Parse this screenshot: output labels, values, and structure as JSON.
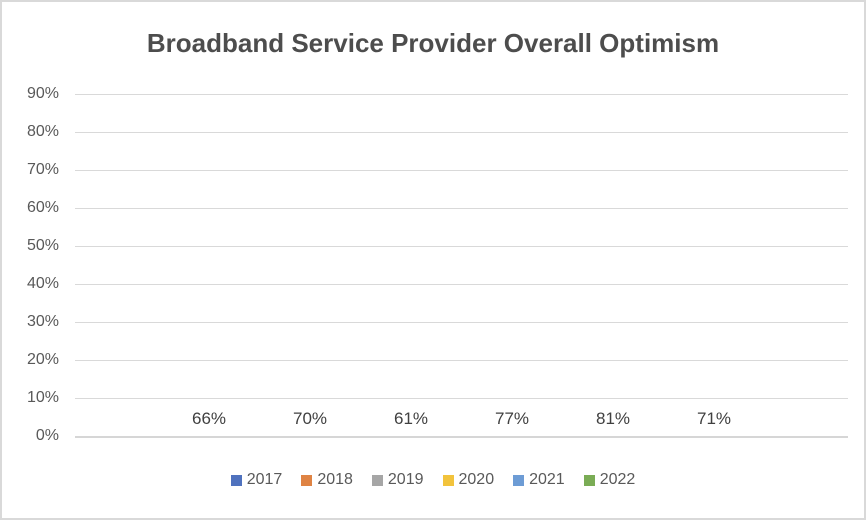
{
  "chart_data": {
    "type": "bar",
    "title": "Broadband Service Provider Overall Optimism",
    "categories": [
      "2017",
      "2018",
      "2019",
      "2020",
      "2021",
      "2022"
    ],
    "values": [
      66,
      70,
      61,
      77,
      81,
      71
    ],
    "series": [
      {
        "name": "2017",
        "value": 66,
        "label": "66%",
        "color": "#4F72BE"
      },
      {
        "name": "2018",
        "value": 70,
        "label": "70%",
        "color": "#DF8343"
      },
      {
        "name": "2019",
        "value": 61,
        "label": "61%",
        "color": "#A6A6A6"
      },
      {
        "name": "2020",
        "value": 77,
        "label": "77%",
        "color": "#F2C33C"
      },
      {
        "name": "2021",
        "value": 81,
        "label": "81%",
        "color": "#6D9CD5"
      },
      {
        "name": "2022",
        "value": 71,
        "label": "71%",
        "color": "#7AAC55"
      }
    ],
    "xlabel": "",
    "ylabel": "",
    "ylim": [
      0,
      90
    ],
    "yticks": [
      "90%",
      "80%",
      "70%",
      "60%",
      "50%",
      "40%",
      "30%",
      "20%",
      "10%",
      "0%"
    ],
    "grid": true,
    "legend_position": "bottom",
    "colors": {
      "title_text": "#4D4D4D",
      "axis_text": "#595959",
      "data_label_text": "#404040",
      "gridline": "#D9D9D9",
      "chart_border": "#D9D9D9",
      "background": "#FFFFFF"
    }
  }
}
